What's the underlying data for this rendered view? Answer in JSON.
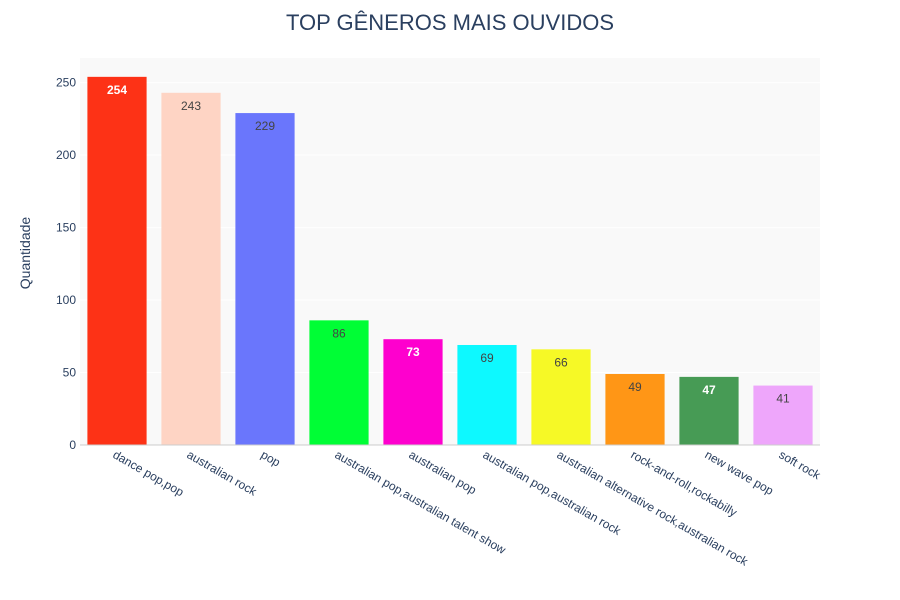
{
  "chart_data": {
    "type": "bar",
    "title": "TOP GÊNEROS MAIS OUVIDOS",
    "xlabel": "",
    "ylabel": "Quantidade",
    "ylim": [
      0,
      267
    ],
    "yticks": [
      0,
      50,
      100,
      150,
      200,
      250
    ],
    "grid": true,
    "categories": [
      "dance pop,pop",
      "australian rock",
      "pop",
      "australian pop,australian talent show",
      "australian pop",
      "australian pop,australian rock",
      "australian alternative rock,australian rock",
      "rock-and-roll,rockabilly",
      "new wave pop",
      "soft rock"
    ],
    "values": [
      254,
      243,
      229,
      86,
      73,
      69,
      66,
      49,
      47,
      41
    ],
    "colors": [
      "#FD3216",
      "#FED4C4",
      "#6A76FC",
      "#00FE35",
      "#FE00CE",
      "#0DF9FF",
      "#F6F926",
      "#FF9616",
      "#479B55",
      "#EEA6FB"
    ],
    "label_colors": [
      "#ffffff",
      "#444444",
      "#444444",
      "#444444",
      "#ffffff",
      "#444444",
      "#444444",
      "#444444",
      "#ffffff",
      "#444444"
    ],
    "plot_background": "#f9f9f9"
  }
}
